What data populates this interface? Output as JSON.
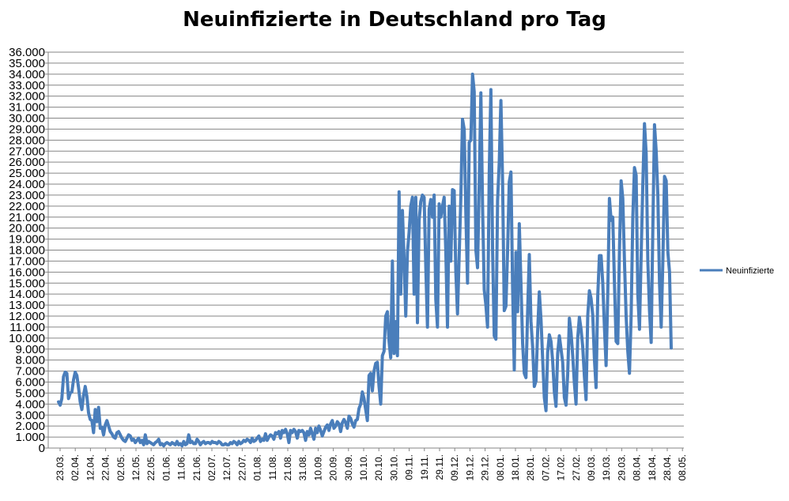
{
  "chart_data": {
    "type": "line",
    "title": "Neuinfizierte in Deutschland pro Tag",
    "xlabel": "",
    "ylabel": "",
    "ylim": [
      0,
      36000
    ],
    "ytick_values": [
      0,
      1000,
      2000,
      3000,
      4000,
      5000,
      6000,
      7000,
      8000,
      9000,
      10000,
      11000,
      12000,
      13000,
      14000,
      15000,
      16000,
      17000,
      18000,
      19000,
      20000,
      21000,
      22000,
      23000,
      24000,
      25000,
      26000,
      27000,
      28000,
      29000,
      30000,
      31000,
      32000,
      33000,
      34000,
      35000,
      36000
    ],
    "ytick_labels": [
      "0",
      "1.000",
      "2.000",
      "3.000",
      "4.000",
      "5.000",
      "6.000",
      "7.000",
      "8.000",
      "9.000",
      "10.000",
      "11.000",
      "12.000",
      "13.000",
      "14.000",
      "15.000",
      "16.000",
      "17.000",
      "18.000",
      "19.000",
      "20.000",
      "21.000",
      "22.000",
      "23.000",
      "24.000",
      "25.000",
      "26.000",
      "27.000",
      "28.000",
      "29.000",
      "30.000",
      "31.000",
      "32.000",
      "33.000",
      "34.000",
      "35.000",
      "36.000"
    ],
    "x_tick_labels": [
      "23.03.",
      "02.04.",
      "12.04.",
      "22.04.",
      "02.05.",
      "12.05.",
      "22.05.",
      "01.06.",
      "11.06.",
      "21.06.",
      "02.07.",
      "12.07.",
      "22.07.",
      "01.08.",
      "11.08.",
      "21.08.",
      "31.08.",
      "10.09.",
      "20.09.",
      "30.09.",
      "10.10.",
      "20.10.",
      "30.10.",
      "09.11.",
      "19.11.",
      "29.11.",
      "09.12.",
      "19.12.",
      "29.12.",
      "08.01.",
      "18.01.",
      "28.01.",
      "07.02.",
      "17.02.",
      "27.02.",
      "09.03.",
      "19.03.",
      "29.03.",
      "08.04.",
      "18.04.",
      "28.04.",
      "08.05."
    ],
    "legend": "right",
    "grid": true,
    "color": "#4a7ebb",
    "series": [
      {
        "name": "Neuinfizierte",
        "values": [
          4200,
          3900,
          4500,
          6500,
          6900,
          6800,
          4500,
          5000,
          5100,
          6200,
          6900,
          6600,
          5500,
          4200,
          3500,
          4800,
          5600,
          4700,
          3200,
          2600,
          2500,
          1400,
          3500,
          2400,
          3700,
          1800,
          1900,
          1200,
          2100,
          2500,
          2000,
          1500,
          1300,
          1000,
          900,
          1400,
          1500,
          1200,
          900,
          700,
          600,
          900,
          1200,
          1100,
          700,
          800,
          500,
          700,
          900,
          500,
          700,
          300,
          1200,
          400,
          600,
          500,
          400,
          300,
          500,
          600,
          800,
          300,
          400,
          200,
          400,
          500,
          400,
          300,
          500,
          400,
          300,
          600,
          300,
          400,
          200,
          600,
          300,
          400,
          1200,
          500,
          600,
          400,
          400,
          800,
          600,
          300,
          500,
          600,
          400,
          500,
          500,
          400,
          600,
          500,
          500,
          400,
          600,
          500,
          300,
          300,
          400,
          300,
          300,
          500,
          400,
          600,
          500,
          300,
          600,
          400,
          500,
          700,
          600,
          800,
          700,
          500,
          900,
          600,
          700,
          900,
          1100,
          600,
          800,
          700,
          1300,
          700,
          1000,
          1200,
          1100,
          800,
          1400,
          1300,
          1500,
          900,
          1600,
          1400,
          1700,
          1300,
          500,
          1600,
          1400,
          1700,
          1500,
          900,
          1600,
          1500,
          1600,
          1400,
          700,
          1500,
          1200,
          1800,
          1300,
          800,
          1800,
          1400,
          2000,
          1600,
          1100,
          1500,
          1900,
          2100,
          1600,
          2200,
          2500,
          1800,
          2000,
          2400,
          2200,
          1500,
          2300,
          2600,
          2300,
          1800,
          2900,
          2700,
          2200,
          1900,
          2500,
          2600,
          3600,
          4000,
          5100,
          4500,
          3500,
          2500,
          6600,
          6800,
          5200,
          7000,
          7700,
          7800,
          5600,
          4000,
          8400,
          8800,
          12000,
          12400,
          9700,
          8200,
          17000,
          8600,
          11500,
          8400,
          23300,
          14000,
          21600,
          17200,
          12000,
          17800,
          19600,
          22000,
          22800,
          14000,
          22800,
          11400,
          20700,
          22400,
          23000,
          22800,
          16500,
          11000,
          21700,
          22600,
          21000,
          23000,
          13500,
          11000,
          22200,
          21000,
          22000,
          22800,
          17800,
          11000,
          22000,
          17000,
          23500,
          23400,
          16000,
          12200,
          17500,
          22800,
          29900,
          29000,
          21300,
          15000,
          27800,
          28000,
          34000,
          32400,
          18000,
          16400,
          24000,
          32300,
          22000,
          14400,
          13000,
          11000,
          25000,
          32600,
          18000,
          10200,
          9900,
          22500,
          26000,
          31600,
          24200,
          12500,
          12900,
          18000,
          24200,
          25100,
          14600,
          7100,
          17800,
          12400,
          20400,
          15000,
          9500,
          6800,
          6400,
          12400,
          17600,
          11500,
          9200,
          5600,
          6100,
          10600,
          14200,
          11700,
          8100,
          4600,
          3400,
          8700,
          10300,
          9700,
          7900,
          5100,
          3800,
          8600,
          10200,
          9000,
          7800,
          4600,
          3900,
          6700,
          11800,
          10500,
          8400,
          5900,
          4000,
          10000,
          11900,
          10800,
          9200,
          6500,
          4400,
          12000,
          14300,
          13600,
          12100,
          8100,
          5500,
          13800,
          17500,
          17500,
          15000,
          11000,
          7500,
          14000,
          22700,
          20700,
          21000,
          15000,
          9700,
          9500,
          18000,
          24300,
          22700,
          17000,
          12000,
          8800,
          6800,
          12000,
          21000,
          25500,
          24800,
          14000,
          10800,
          17500,
          24000,
          29500,
          26800,
          17000,
          12500,
          9600,
          20000,
          29400,
          27000,
          23000,
          15000,
          11000,
          17000,
          24700,
          24300,
          17800,
          16000,
          9100
        ]
      }
    ]
  }
}
